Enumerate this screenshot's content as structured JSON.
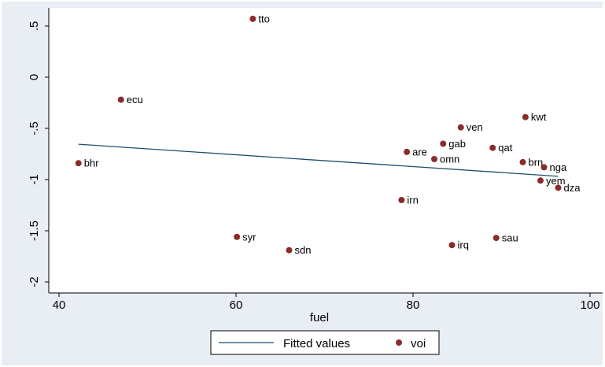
{
  "chart_data": {
    "type": "scatter",
    "xlabel": "fuel",
    "ylabel": "",
    "xlim": [
      40,
      100
    ],
    "ylim": [
      -2,
      0.6
    ],
    "x_ticks": [
      {
        "value": 40,
        "label": "40"
      },
      {
        "value": 60,
        "label": "60"
      },
      {
        "value": 80,
        "label": "80"
      },
      {
        "value": 100,
        "label": "100"
      }
    ],
    "y_ticks": [
      {
        "value": 0.5,
        "label": ".5"
      },
      {
        "value": 0,
        "label": "0"
      },
      {
        "value": -0.5,
        "label": "-.5"
      },
      {
        "value": -1,
        "label": "-1"
      },
      {
        "value": -1.5,
        "label": "-1.5"
      },
      {
        "value": -2,
        "label": "-2"
      }
    ],
    "grid": false,
    "legend_position": "bottom",
    "series": [
      {
        "name": "voi",
        "kind": "scatter",
        "color": "#8b2c2c",
        "points": [
          {
            "label": "tto",
            "x": 61.9,
            "y": 0.57
          },
          {
            "label": "ecu",
            "x": 47.0,
            "y": -0.22
          },
          {
            "label": "bhr",
            "x": 42.2,
            "y": -0.84
          },
          {
            "label": "kwt",
            "x": 92.7,
            "y": -0.39
          },
          {
            "label": "ven",
            "x": 85.4,
            "y": -0.49
          },
          {
            "label": "gab",
            "x": 83.4,
            "y": -0.65
          },
          {
            "label": "qat",
            "x": 89.0,
            "y": -0.69
          },
          {
            "label": "are",
            "x": 79.3,
            "y": -0.73
          },
          {
            "label": "omn",
            "x": 82.4,
            "y": -0.8
          },
          {
            "label": "brn",
            "x": 92.4,
            "y": -0.83
          },
          {
            "label": "nga",
            "x": 94.8,
            "y": -0.88
          },
          {
            "label": "yem",
            "x": 94.4,
            "y": -1.01
          },
          {
            "label": "dza",
            "x": 96.4,
            "y": -1.08
          },
          {
            "label": "irn",
            "x": 78.7,
            "y": -1.2
          },
          {
            "label": "syr",
            "x": 60.1,
            "y": -1.56
          },
          {
            "label": "sau",
            "x": 89.4,
            "y": -1.57
          },
          {
            "label": "irq",
            "x": 84.4,
            "y": -1.64
          },
          {
            "label": "sdn",
            "x": 66.0,
            "y": -1.69
          }
        ]
      },
      {
        "name": "Fitted values",
        "kind": "line",
        "color": "#1f4e6b",
        "x": [
          42.2,
          96.4
        ],
        "y": [
          -0.655,
          -0.968
        ]
      }
    ]
  },
  "legend": {
    "fitted_label": "Fitted values",
    "voi_label": "voi"
  }
}
